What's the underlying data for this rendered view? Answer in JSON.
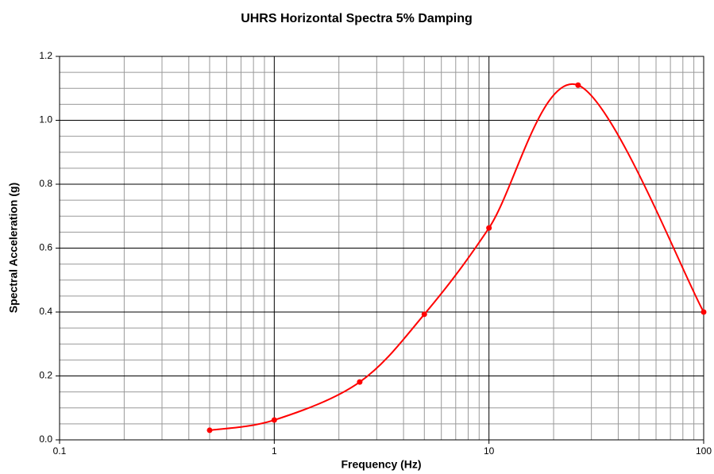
{
  "chart_data": {
    "type": "line",
    "title": "UHRS Horizontal Spectra 5% Damping",
    "x_label": "Frequency (Hz)",
    "y_label": "Spectral Acceleration (g)",
    "x": [
      0.5,
      1,
      2.5,
      5,
      10,
      26,
      100
    ],
    "series": [
      {
        "name": "UHRS",
        "color": "#ff0000",
        "values": [
          0.03,
          0.062,
          0.181,
          0.393,
          0.663,
          1.11,
          0.4
        ]
      }
    ],
    "xscale": "log",
    "xlim": [
      0.1,
      100
    ],
    "xticks": [
      0.1,
      1,
      10,
      100
    ],
    "ylim": [
      0,
      1.2
    ],
    "yticks": [
      {
        "value": 0,
        "label": "0.0"
      },
      {
        "value": 0.2,
        "label": "0.2"
      },
      {
        "value": 0.4,
        "label": "0.4"
      },
      {
        "value": 0.6,
        "label": "0.6"
      },
      {
        "value": 0.8,
        "label": "0.8"
      },
      {
        "value": 1,
        "label": "1.0"
      },
      {
        "value": 1.2,
        "label": "1.2"
      }
    ],
    "grid": true,
    "smooth": true
  }
}
